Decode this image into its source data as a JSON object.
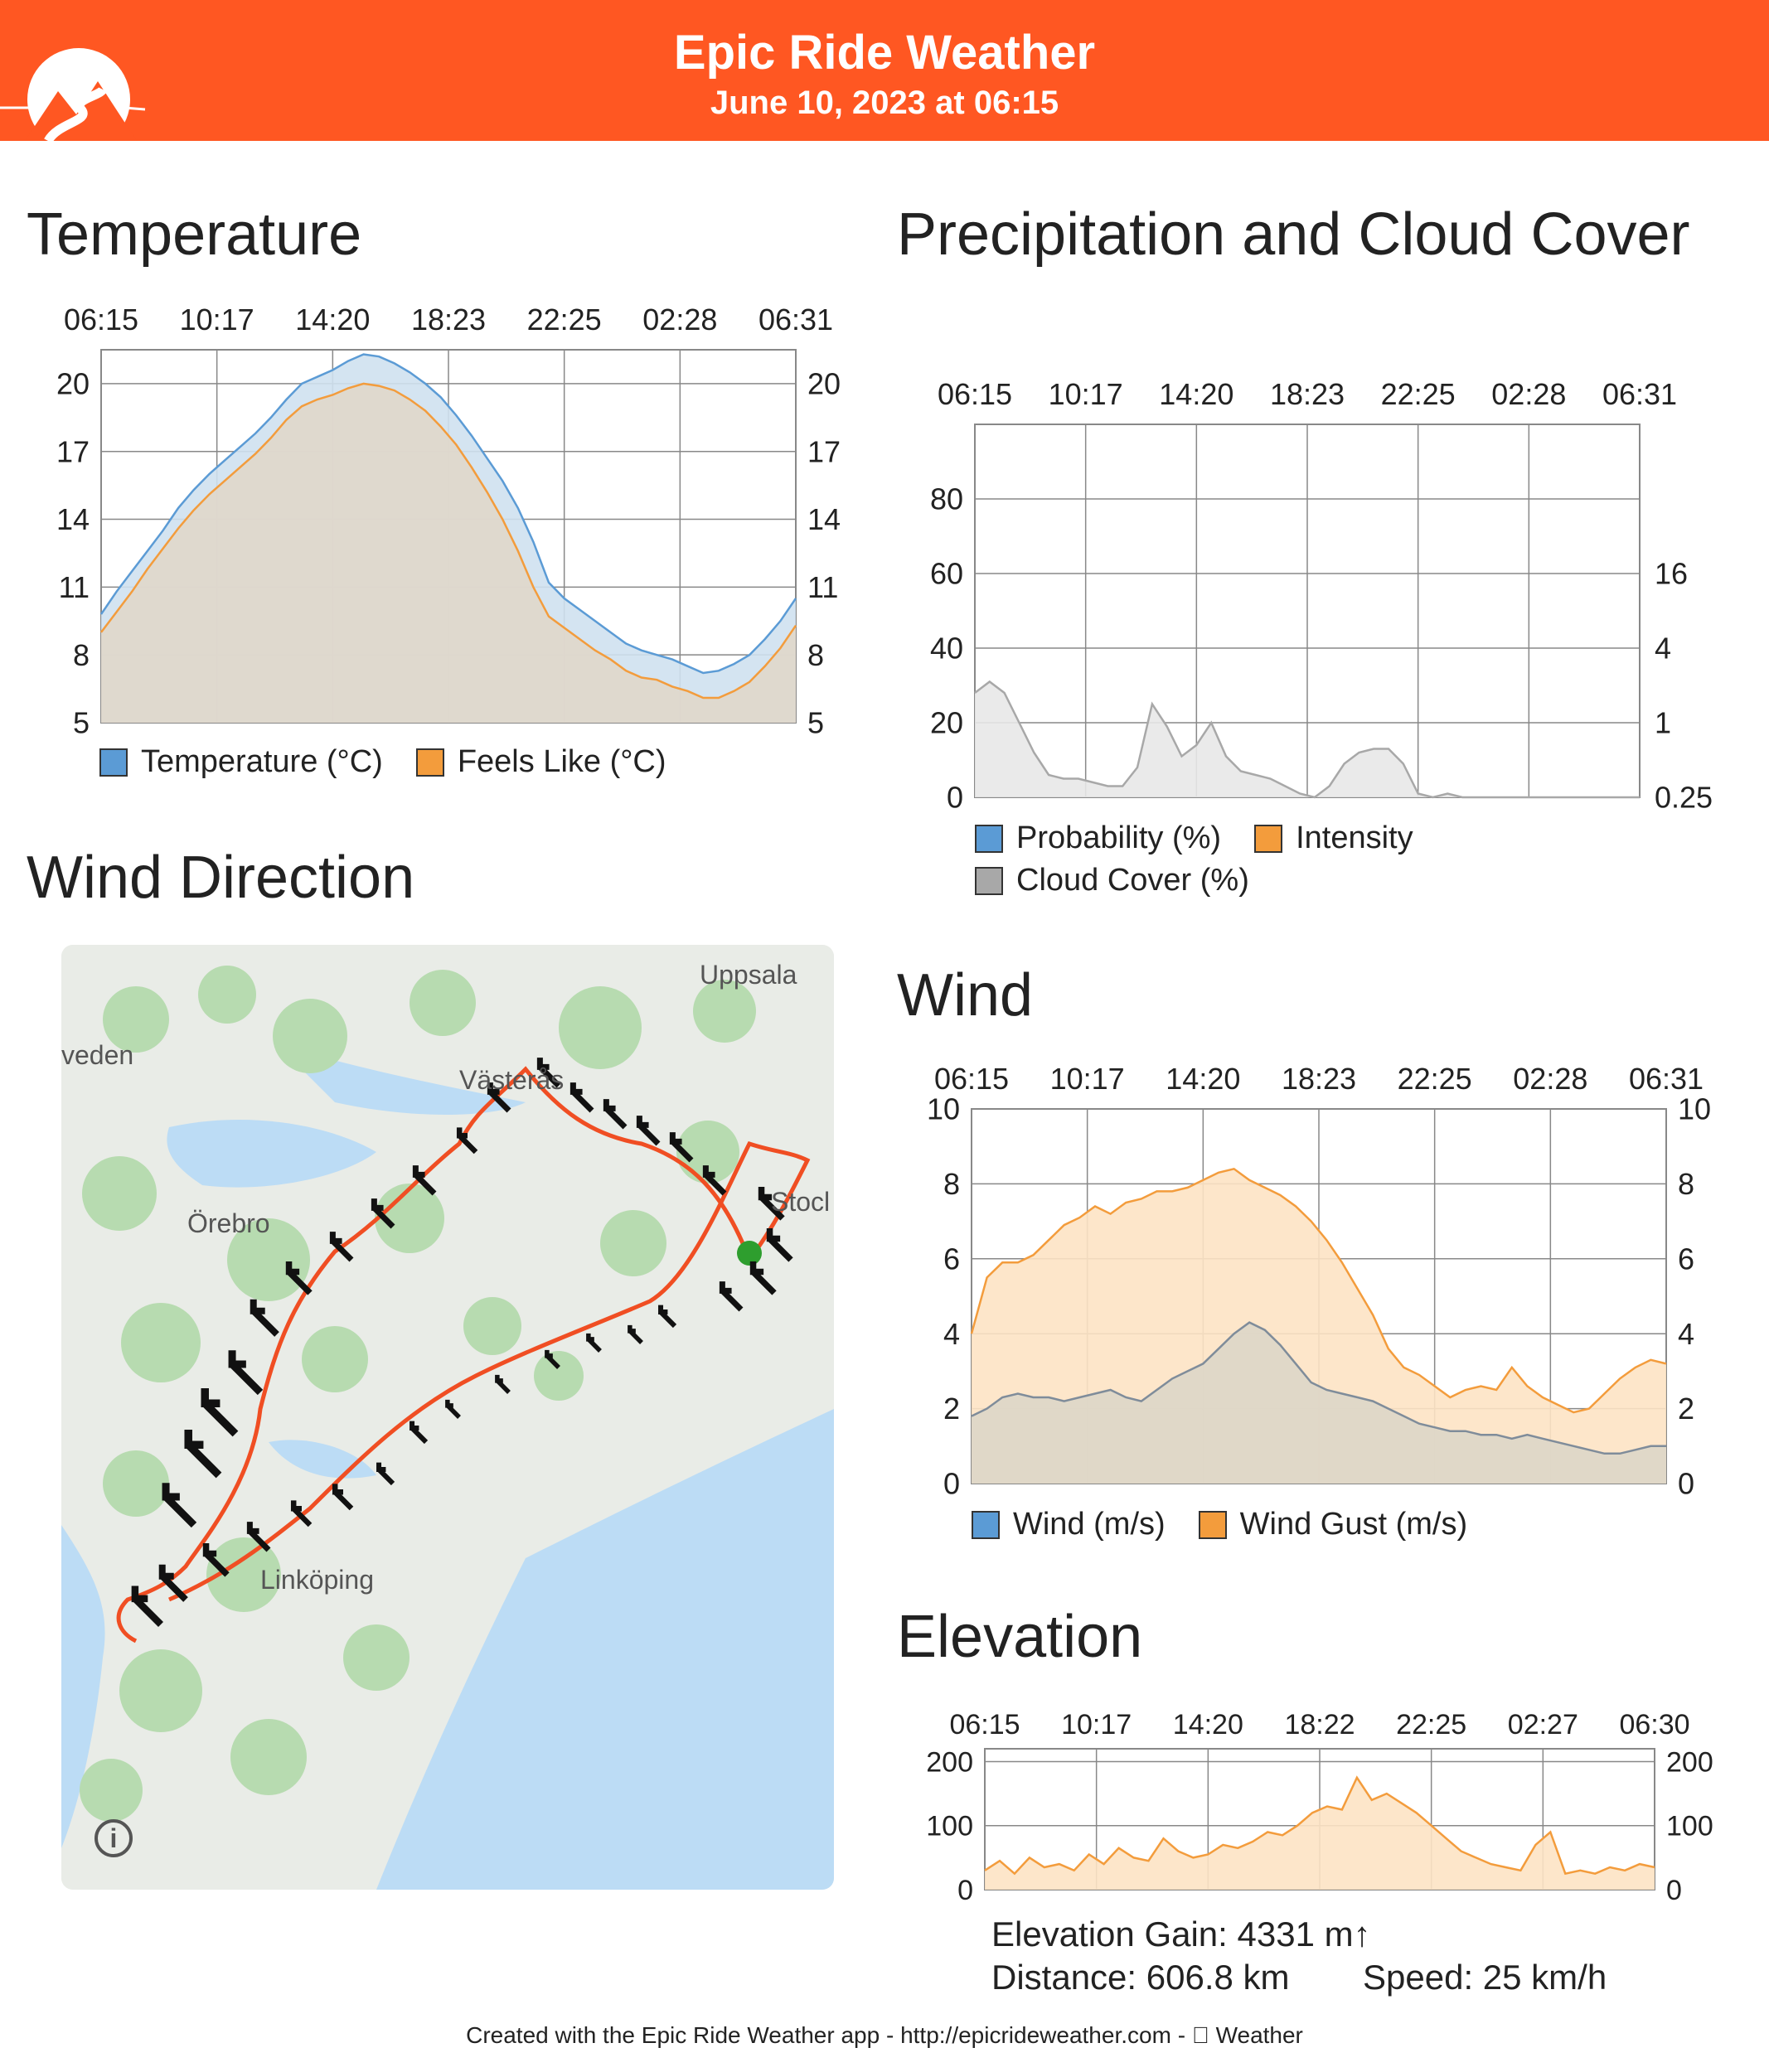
{
  "header": {
    "title": "Epic Ride Weather",
    "subtitle": "June 10, 2023 at 06:15",
    "brand_color": "#ff5722"
  },
  "sections": {
    "temperature": "Temperature",
    "precipitation": "Precipitation and Cloud Cover",
    "wind_direction": "Wind Direction",
    "wind": "Wind",
    "elevation": "Elevation"
  },
  "map": {
    "places": [
      "Uppsala",
      "veden",
      "Västerås",
      "Örebro",
      "Stocl",
      "Linköping"
    ],
    "info_icon": "info-icon",
    "route_color": "#f04e23",
    "arrow_color": "#111111",
    "start_color": "#2e9e2e"
  },
  "stats": {
    "elevation_gain": "Elevation Gain: 4331 m↑",
    "distance": "Distance: 606.8 km",
    "speed": "Speed: 25 km/h"
  },
  "footer": "Created with the Epic Ride Weather app - http://epicrideweather.com -  Weather",
  "chart_data": [
    {
      "id": "temperature",
      "type": "area",
      "title": "Temperature",
      "x_ticks": [
        "06:15",
        "10:17",
        "14:20",
        "18:23",
        "22:25",
        "02:28",
        "06:31"
      ],
      "y_ticks": [
        5,
        8,
        11,
        14,
        17,
        20
      ],
      "ylim": [
        5,
        21.5
      ],
      "grid": true,
      "legend_position": "bottom",
      "series": [
        {
          "name": "Temperature (°C)",
          "color": "#5b9bd5",
          "fill": "#cfe1ef",
          "values": [
            9.8,
            10.8,
            11.7,
            12.6,
            13.5,
            14.5,
            15.3,
            16.0,
            16.6,
            17.2,
            17.8,
            18.5,
            19.3,
            20.0,
            20.3,
            20.6,
            21.0,
            21.3,
            21.2,
            20.9,
            20.5,
            20.0,
            19.4,
            18.6,
            17.7,
            16.7,
            15.7,
            14.5,
            13.0,
            11.2,
            10.5,
            10.0,
            9.5,
            9.0,
            8.5,
            8.2,
            8.0,
            7.8,
            7.5,
            7.2,
            7.3,
            7.6,
            8.0,
            8.7,
            9.5,
            10.5
          ]
        },
        {
          "name": "Feels Like (°C)",
          "color": "#f39c3c",
          "fill": "#e0d7ca",
          "values": [
            9.0,
            9.9,
            10.8,
            11.8,
            12.7,
            13.6,
            14.4,
            15.1,
            15.7,
            16.3,
            16.9,
            17.6,
            18.4,
            19.0,
            19.3,
            19.5,
            19.8,
            20.0,
            19.9,
            19.7,
            19.3,
            18.8,
            18.1,
            17.3,
            16.3,
            15.2,
            14.0,
            12.6,
            11.0,
            9.7,
            9.2,
            8.7,
            8.2,
            7.8,
            7.3,
            7.0,
            6.9,
            6.6,
            6.4,
            6.1,
            6.1,
            6.4,
            6.8,
            7.5,
            8.3,
            9.3
          ]
        }
      ]
    },
    {
      "id": "precipitation",
      "type": "area",
      "title": "Precipitation and Cloud Cover",
      "x_ticks": [
        "06:15",
        "10:17",
        "14:20",
        "18:23",
        "22:25",
        "02:28",
        "06:31"
      ],
      "y_ticks_left": [
        0,
        20,
        40,
        60,
        80
      ],
      "y_ticks_right": [
        "0.25",
        "1",
        "4",
        "16"
      ],
      "ylim": [
        0,
        100
      ],
      "grid": true,
      "legend_position": "bottom",
      "series": [
        {
          "name": "Probability (%)",
          "color": "#5b9bd5",
          "values": []
        },
        {
          "name": "Intensity",
          "color": "#f39c3c",
          "values": []
        },
        {
          "name": "Cloud Cover (%)",
          "color": "#a8a8a8",
          "fill": "#e8e8e8",
          "values": [
            28,
            31,
            28,
            20,
            12,
            6,
            5,
            5,
            4,
            3,
            3,
            8,
            25,
            19,
            11,
            14,
            20,
            11,
            7,
            6,
            5,
            3,
            1,
            0,
            3,
            9,
            12,
            13,
            13,
            9,
            1,
            0,
            1,
            0,
            0,
            0,
            0,
            0,
            0,
            0,
            0,
            0,
            0,
            0,
            0,
            0
          ]
        }
      ]
    },
    {
      "id": "wind",
      "type": "area",
      "title": "Wind",
      "x_ticks": [
        "06:15",
        "10:17",
        "14:20",
        "18:23",
        "22:25",
        "02:28",
        "06:31"
      ],
      "y_ticks": [
        0,
        2,
        4,
        6,
        8,
        10
      ],
      "ylim": [
        0,
        10
      ],
      "grid": true,
      "legend_position": "bottom",
      "series": [
        {
          "name": "Wind (m/s)",
          "color": "#7f8c9a",
          "fill": "#ddd6c8",
          "values": [
            1.8,
            2.0,
            2.3,
            2.4,
            2.3,
            2.3,
            2.2,
            2.3,
            2.4,
            2.5,
            2.3,
            2.2,
            2.5,
            2.8,
            3.0,
            3.2,
            3.6,
            4.0,
            4.3,
            4.1,
            3.7,
            3.2,
            2.7,
            2.5,
            2.4,
            2.3,
            2.2,
            2.0,
            1.8,
            1.6,
            1.5,
            1.4,
            1.4,
            1.3,
            1.3,
            1.2,
            1.3,
            1.2,
            1.1,
            1.0,
            0.9,
            0.8,
            0.8,
            0.9,
            1.0,
            1.0
          ]
        },
        {
          "name": "Wind Gust (m/s)",
          "color": "#f39c3c",
          "fill": "#fde3c4",
          "values": [
            4.0,
            5.5,
            5.9,
            5.9,
            6.1,
            6.5,
            6.9,
            7.1,
            7.4,
            7.2,
            7.5,
            7.6,
            7.8,
            7.8,
            7.9,
            8.1,
            8.3,
            8.4,
            8.1,
            7.9,
            7.7,
            7.4,
            7.0,
            6.5,
            5.9,
            5.2,
            4.5,
            3.6,
            3.1,
            2.9,
            2.6,
            2.3,
            2.5,
            2.6,
            2.5,
            3.1,
            2.6,
            2.3,
            2.1,
            1.9,
            2.0,
            2.4,
            2.8,
            3.1,
            3.3,
            3.2
          ]
        }
      ]
    },
    {
      "id": "elevation",
      "type": "area",
      "title": "Elevation",
      "x_ticks": [
        "06:15",
        "10:17",
        "14:20",
        "18:22",
        "22:25",
        "02:27",
        "06:30"
      ],
      "y_ticks": [
        0,
        100,
        200
      ],
      "ylim": [
        0,
        220
      ],
      "grid": true,
      "series": [
        {
          "name": "Elevation",
          "color": "#f39c3c",
          "fill": "#fde3c4",
          "values": [
            30,
            45,
            25,
            50,
            35,
            40,
            30,
            55,
            40,
            65,
            50,
            45,
            80,
            60,
            50,
            55,
            70,
            65,
            75,
            90,
            85,
            100,
            120,
            130,
            125,
            175,
            140,
            150,
            135,
            120,
            100,
            80,
            60,
            50,
            40,
            35,
            30,
            70,
            90,
            25,
            30,
            25,
            35,
            30,
            40,
            35
          ]
        }
      ]
    }
  ]
}
